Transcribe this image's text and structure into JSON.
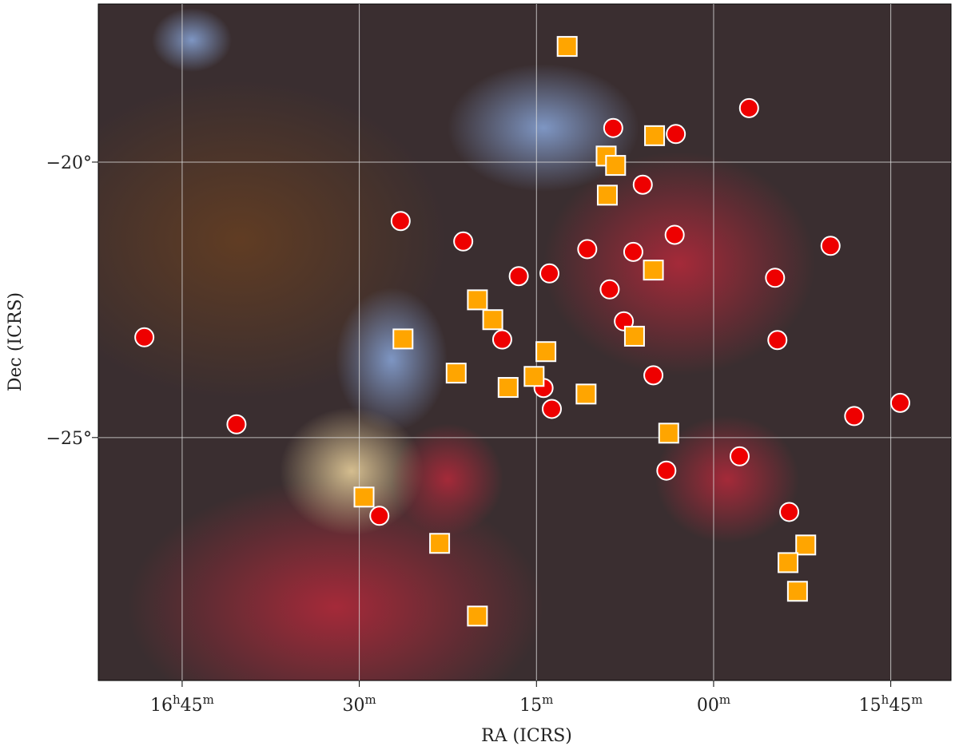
{
  "chart_data": {
    "type": "scatter",
    "xlabel": "RA (ICRS)",
    "ylabel": "Dec (ICRS)",
    "xlim": [
      1012.1,
      939.9
    ],
    "ylim": [
      -29.41,
      -17.13
    ],
    "xticks": [
      {
        "value": 1005,
        "label": "16h45m"
      },
      {
        "value": 990,
        "label": "30m"
      },
      {
        "value": 975,
        "label": "15m"
      },
      {
        "value": 960,
        "label": "00m"
      },
      {
        "value": 945,
        "label": "15h45m"
      }
    ],
    "yticks": [
      {
        "value": -20,
        "label": "−20°"
      },
      {
        "value": -25,
        "label": "−25°"
      }
    ],
    "grid": true,
    "series": [
      {
        "color": "#ee0000",
        "marker": "circle",
        "x": [
          1008.2,
          1000.4,
          988.3,
          986.5,
          981.2,
          977.9,
          976.5,
          973.9,
          974.4,
          973.7,
          970.7,
          968.5,
          968.8,
          967.6,
          966.8,
          966.0,
          965.1,
          963.2,
          963.3,
          964.0,
          957.0,
          954.8,
          954.6,
          957.8,
          953.6,
          950.1,
          948.1,
          944.2
        ],
        "values": [
          -23.18,
          -24.76,
          -26.42,
          -21.07,
          -21.44,
          -23.22,
          -22.07,
          -22.02,
          -24.1,
          -24.48,
          -21.58,
          -19.38,
          -22.31,
          -22.89,
          -21.63,
          -20.41,
          -23.87,
          -19.49,
          -21.32,
          -25.6,
          -19.02,
          -22.1,
          -23.23,
          -25.34,
          -26.35,
          -21.52,
          -24.61,
          -24.37
        ]
      },
      {
        "color": "#ffa500",
        "marker": "square",
        "x": [
          972.4,
          965.0,
          969.1,
          968.3,
          969.0,
          965.1,
          980.0,
          978.7,
          986.3,
          966.7,
          974.2,
          981.8,
          975.2,
          977.4,
          970.8,
          963.8,
          989.6,
          983.2,
          952.2,
          953.7,
          952.9,
          980.0
        ],
        "values": [
          -17.9,
          -19.52,
          -19.89,
          -20.06,
          -20.6,
          -21.96,
          -22.5,
          -22.86,
          -23.21,
          -23.16,
          -23.44,
          -23.83,
          -23.89,
          -24.09,
          -24.21,
          -24.92,
          -26.08,
          -26.92,
          -26.95,
          -27.27,
          -27.79,
          -28.24
        ]
      }
    ]
  }
}
